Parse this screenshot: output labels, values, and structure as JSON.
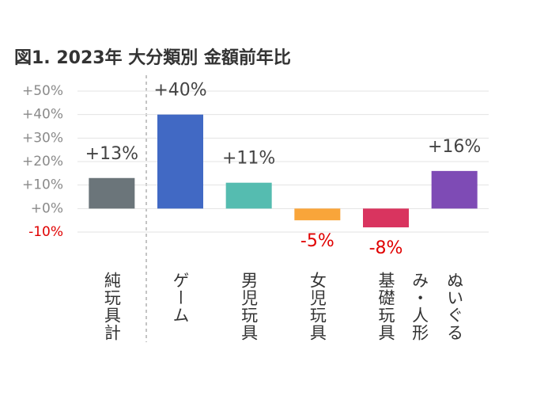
{
  "chart_data": {
    "type": "bar",
    "title": "図1.  2023年  大分類別  金額前年比",
    "categories": [
      "純玩具計",
      "ゲーム",
      "男児玩具",
      "女児玩具",
      "基礎玩具",
      "ぬいぐるみ・人形"
    ],
    "values": [
      13,
      40,
      11,
      -5,
      -8,
      16
    ],
    "value_labels": [
      "+13%",
      "+40%",
      "+11%",
      "-5%",
      "-8%",
      "+16%"
    ],
    "colors": [
      "#6b757a",
      "#4169c4",
      "#55bcb0",
      "#f9a53a",
      "#d9345f",
      "#7e4bb5"
    ],
    "ylim": [
      -10,
      50
    ],
    "yticks": [
      {
        "value": -10,
        "label": "-10%"
      },
      {
        "value": 0,
        "label": "+0%"
      },
      {
        "value": 10,
        "label": "+10%"
      },
      {
        "value": 20,
        "label": "+20%"
      },
      {
        "value": 30,
        "label": "+30%"
      },
      {
        "value": 40,
        "label": "+40%"
      },
      {
        "value": 50,
        "label": "+50%"
      }
    ],
    "grid": true,
    "negative_label_color": "#e00000"
  }
}
